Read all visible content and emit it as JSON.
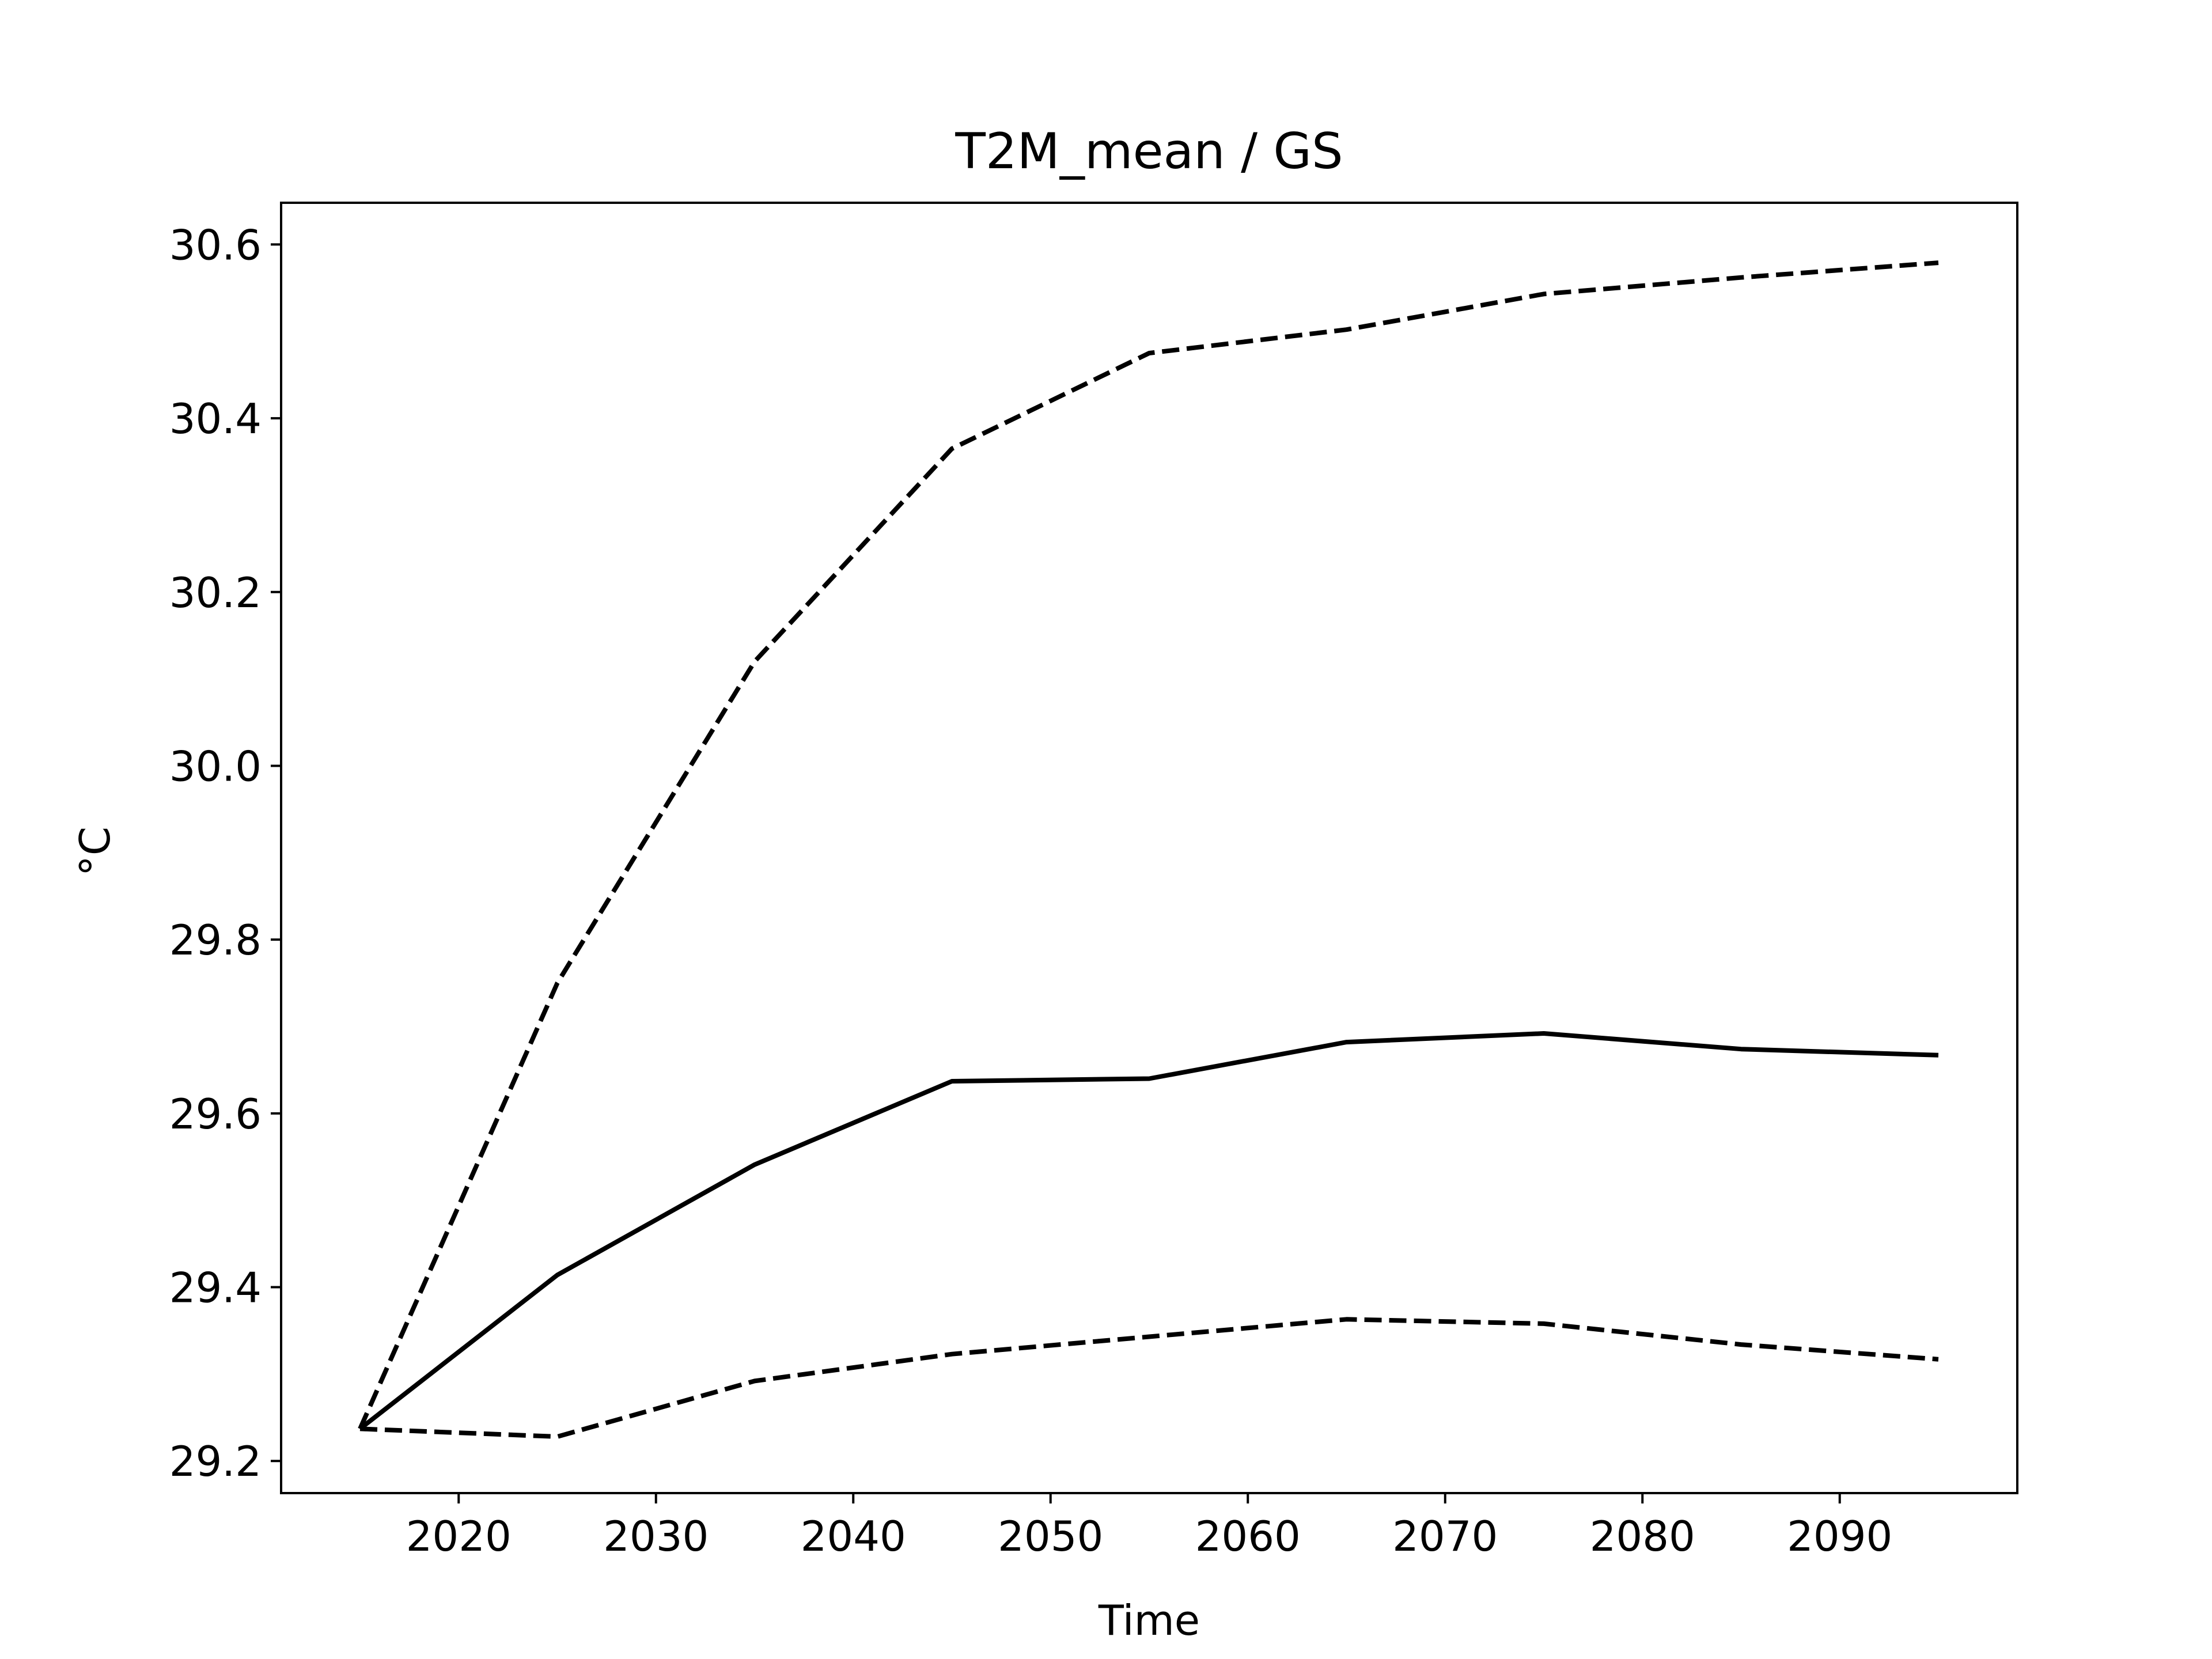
{
  "chart_data": {
    "type": "line",
    "title": "T2M_mean / GS",
    "xlabel": "Time",
    "ylabel": "°C",
    "x": [
      2015,
      2025,
      2035,
      2045,
      2055,
      2065,
      2075,
      2085,
      2095
    ],
    "series": [
      {
        "values": [
          29.237,
          29.414,
          29.541,
          29.637,
          29.64,
          29.682,
          29.692,
          29.674,
          29.667
        ],
        "style": "solid",
        "color": "#000000"
      },
      {
        "values": [
          29.237,
          29.75,
          30.12,
          30.365,
          30.475,
          30.502,
          30.543,
          30.562,
          30.579
        ],
        "style": "dashed",
        "color": "#000000"
      },
      {
        "values": [
          29.237,
          29.228,
          29.292,
          29.323,
          29.343,
          29.363,
          29.358,
          29.334,
          29.317
        ],
        "style": "dashed",
        "color": "#000000"
      }
    ],
    "xlim": [
      2011,
      2099
    ],
    "ylim": [
      29.163,
      30.648
    ],
    "xticks": [
      2020,
      2030,
      2040,
      2050,
      2060,
      2070,
      2080,
      2090
    ],
    "xtick_labels": [
      "2020",
      "2030",
      "2040",
      "2050",
      "2060",
      "2070",
      "2080",
      "2090"
    ],
    "yticks": [
      29.2,
      29.4,
      29.6,
      29.8,
      30.0,
      30.2,
      30.4,
      30.6
    ],
    "ytick_labels": [
      "29.2",
      "29.4",
      "29.6",
      "29.8",
      "30.0",
      "30.2",
      "30.4",
      "30.6"
    ],
    "grid": false,
    "legend": "none"
  }
}
